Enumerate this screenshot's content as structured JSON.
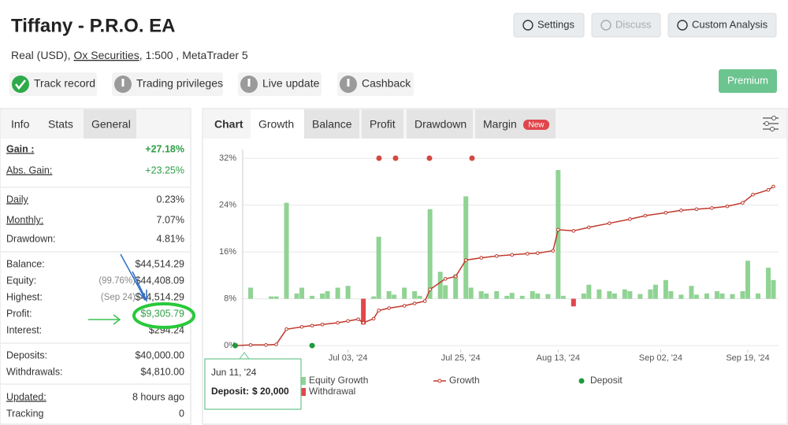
{
  "header": {
    "title": "Tiffany - P.R.O. EA",
    "account": "Real (USD),",
    "broker": "Ox Securities",
    "details": ", 1:500 , MetaTrader 5"
  },
  "buttons": [
    "Settings",
    "Discuss",
    "Custom Analysis",
    "Premium"
  ],
  "badges": [
    "Track record",
    "Trading privileges",
    "Live update",
    "Cashback"
  ],
  "side_tabs": [
    "Info",
    "Stats",
    "General"
  ],
  "stats": [
    [
      {
        "label": "Gain :",
        "value": "+27.18%",
        "color": "#2e9e46"
      },
      {
        "label": "Abs. Gain:",
        "value": "+23.25%",
        "color": "#2e9e46"
      }
    ],
    [
      {
        "label": "Daily",
        "value": "0.23%"
      },
      {
        "label": "Monthly:",
        "value": "7.07%"
      },
      {
        "label": "Drawdown:",
        "value": "4.81%"
      }
    ],
    [
      {
        "label": "Balance:",
        "value": "$44,514.29"
      },
      {
        "label": "Equity:",
        "note": "(99.76%)",
        "value": "$44,408.09"
      },
      {
        "label": "Highest:",
        "note": "(Sep 24)",
        "value": "$44,514.29"
      },
      {
        "label": "Profit:",
        "value": "$9,305.79",
        "color": "#2e9e46"
      },
      {
        "label": "Interest:",
        "value": "$294.24"
      }
    ],
    [
      {
        "label": "Deposits:",
        "value": "$40,000.00"
      },
      {
        "label": "Withdrawals:",
        "value": "$4,810.00"
      }
    ],
    [
      {
        "label": "Updated:",
        "value": "8 hours ago"
      },
      {
        "label": "Tracking",
        "value": "0"
      }
    ]
  ],
  "chart_tabs": [
    "Chart",
    "Growth",
    "Balance",
    "Profit",
    "Drawdown",
    "Margin"
  ],
  "new_badge": "New",
  "tooltip": {
    "date": "Jun 11, '24",
    "label": "Deposit:",
    "value": "$ 20,000"
  },
  "chart_data": {
    "type": "line",
    "xlim": [
      "2024-06-10",
      "2024-09-25"
    ],
    "xticks": [
      {
        "value": "2024-07-03",
        "label": "Jul 03, '24"
      },
      {
        "value": "2024-07-25",
        "label": "Jul 25, '24"
      },
      {
        "value": "2024-08-13",
        "label": "Aug 13, '24"
      },
      {
        "value": "2024-09-02",
        "label": "Sep 02, '24"
      },
      {
        "value": "2024-09-19",
        "label": "Sep 19, '24"
      }
    ],
    "ylim": [
      -1.2,
      33.5
    ],
    "yticks": [
      {
        "value": 0,
        "label": "0%"
      },
      {
        "value": 8,
        "label": "8%"
      },
      {
        "value": 16,
        "label": "16%"
      },
      {
        "value": 24,
        "label": "24%"
      },
      {
        "value": 32,
        "label": "32%"
      }
    ],
    "y2lim": [
      -9.2,
      25.5
    ],
    "grid": true,
    "series": [
      {
        "name": "Equity Growth",
        "type": "bar",
        "axis": "y2",
        "color": "#90d394",
        "x": [
          "2024-06-14",
          "2024-06-18",
          "2024-06-19",
          "2024-06-21",
          "2024-06-23",
          "2024-06-24",
          "2024-06-26",
          "2024-06-28",
          "2024-06-29",
          "2024-07-01",
          "2024-07-03",
          "2024-07-08",
          "2024-07-09",
          "2024-07-11",
          "2024-07-12",
          "2024-07-14",
          "2024-07-16",
          "2024-07-17",
          "2024-07-19",
          "2024-07-21",
          "2024-07-22",
          "2024-07-24",
          "2024-07-26",
          "2024-07-27",
          "2024-07-29",
          "2024-07-30",
          "2024-08-01",
          "2024-08-03",
          "2024-08-04",
          "2024-08-06",
          "2024-08-08",
          "2024-08-09",
          "2024-08-11",
          "2024-08-13",
          "2024-08-14",
          "2024-08-18",
          "2024-08-19",
          "2024-08-21",
          "2024-08-23",
          "2024-08-24",
          "2024-08-26",
          "2024-08-27",
          "2024-08-29",
          "2024-08-31",
          "2024-09-01",
          "2024-09-03",
          "2024-09-04",
          "2024-09-06",
          "2024-09-08",
          "2024-09-09",
          "2024-09-11",
          "2024-09-13",
          "2024-09-14",
          "2024-09-16",
          "2024-09-18",
          "2024-09-19",
          "2024-09-21",
          "2024-09-23",
          "2024-09-24"
        ],
        "values": [
          1.9,
          0.4,
          0.4,
          16.4,
          0.9,
          1.9,
          0.5,
          0.9,
          1.3,
          1.9,
          2.2,
          0.4,
          10.6,
          1.3,
          0.7,
          1.9,
          1.3,
          0.5,
          15.3,
          4.6,
          2.3,
          4.2,
          17.5,
          1.9,
          1.3,
          0.9,
          1.3,
          0.5,
          1.0,
          0.5,
          1.3,
          0.9,
          0.8,
          22.0,
          0.5,
          0.9,
          2.4,
          1.6,
          1.3,
          0.9,
          1.6,
          1.3,
          0.8,
          1.6,
          2.4,
          3.2,
          1.3,
          0.7,
          2.2,
          0.7,
          0.9,
          1.3,
          0.9,
          0.8,
          1.3,
          6.5,
          0.9,
          5.3,
          3.2
        ]
      },
      {
        "name": "Withdrawal",
        "type": "bar",
        "axis": "y2",
        "color": "#e0474c",
        "x": [
          "2024-07-06",
          "2024-08-16"
        ],
        "values": [
          -4.4,
          -1.3
        ]
      },
      {
        "name": "Growth",
        "type": "line",
        "color": "#c0392b",
        "x": [
          "2024-06-11",
          "2024-06-14",
          "2024-06-17",
          "2024-06-19",
          "2024-06-21",
          "2024-06-24",
          "2024-06-26",
          "2024-06-28",
          "2024-07-01",
          "2024-07-03",
          "2024-07-05",
          "2024-07-06",
          "2024-07-08",
          "2024-07-09",
          "2024-07-11",
          "2024-07-14",
          "2024-07-16",
          "2024-07-18",
          "2024-07-19",
          "2024-07-22",
          "2024-07-24",
          "2024-07-26",
          "2024-07-29",
          "2024-08-01",
          "2024-08-04",
          "2024-08-07",
          "2024-08-09",
          "2024-08-12",
          "2024-08-13",
          "2024-08-16",
          "2024-08-19",
          "2024-08-23",
          "2024-08-27",
          "2024-08-30",
          "2024-09-03",
          "2024-09-06",
          "2024-09-09",
          "2024-09-12",
          "2024-09-15",
          "2024-09-18",
          "2024-09-20",
          "2024-09-23",
          "2024-09-24"
        ],
        "values": [
          0,
          0.1,
          0.1,
          0.2,
          2.8,
          3.2,
          3.4,
          3.6,
          3.9,
          4.2,
          4.5,
          3.9,
          4.6,
          6.0,
          6.4,
          6.8,
          7.2,
          7.6,
          9.6,
          11.4,
          11.8,
          14.6,
          15.0,
          15.3,
          15.5,
          15.7,
          15.8,
          16.2,
          19.8,
          19.6,
          20.2,
          20.9,
          21.6,
          22.2,
          22.7,
          23.1,
          23.3,
          23.5,
          23.8,
          24.4,
          25.8,
          26.6,
          27.18
        ]
      },
      {
        "name": "Deposit",
        "type": "scatter",
        "color": "#1a9b3c",
        "x": [
          "2024-06-11",
          "2024-06-26"
        ],
        "values": [
          0,
          0
        ]
      }
    ]
  }
}
